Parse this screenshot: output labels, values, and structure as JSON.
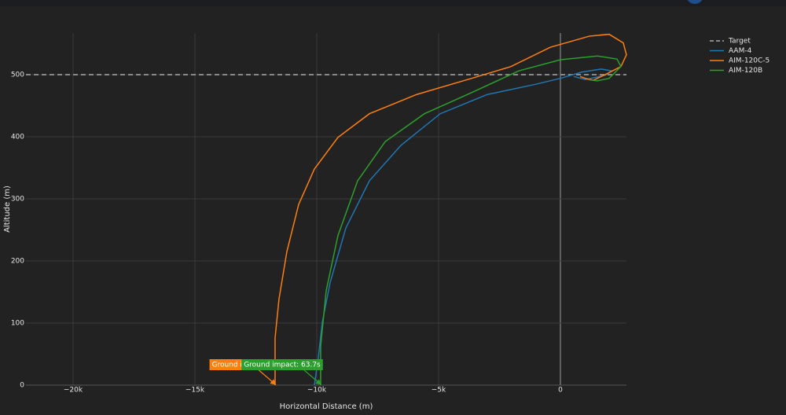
{
  "chart_data": {
    "type": "line",
    "xlabel": "Horizontal Distance (m)",
    "ylabel": "Altitude (m)",
    "xlim": [
      -21935,
      2710
    ],
    "ylim": [
      0,
      567
    ],
    "xticks": [
      {
        "value": -20000,
        "label": "−20k"
      },
      {
        "value": -15000,
        "label": "−15k"
      },
      {
        "value": -10000,
        "label": "−10k"
      },
      {
        "value": -5000,
        "label": "−5k"
      },
      0
    ],
    "yticks": [
      0,
      100,
      200,
      300,
      400,
      500
    ],
    "grid": true,
    "legend": "top-right",
    "series": [
      {
        "name": "Target",
        "color": "#aaaaaa",
        "dash": true,
        "x": [
          -21935,
          2710
        ],
        "values": [
          500,
          500
        ]
      },
      {
        "name": "AAM-4",
        "color": "#1f77b4",
        "x": [
          -10097,
          -9935,
          -9774,
          -9452,
          -8806,
          -7839,
          -6548,
          -4935,
          -3000,
          -1065,
          0,
          871,
          1677,
          2097,
          1839,
          1032,
          548
        ],
        "values": [
          0,
          44,
          101,
          165,
          253,
          329,
          386,
          437,
          468,
          484,
          494,
          504,
          509,
          506,
          499,
          492,
          497
        ]
      },
      {
        "name": "AIM-120C-5",
        "color": "#ff7f0e",
        "x": [
          -11710,
          -11710,
          -11548,
          -11226,
          -10742,
          -10097,
          -9129,
          -7839,
          -5903,
          -3645,
          -2032,
          -419,
          1194,
          2000,
          2581,
          2710,
          2484,
          1839,
          1355,
          1032,
          806
        ],
        "values": [
          0,
          76,
          139,
          215,
          291,
          348,
          399,
          437,
          468,
          494,
          513,
          544,
          562,
          565,
          551,
          532,
          513,
          500,
          491,
          494,
          497
        ]
      },
      {
        "name": "AIM-120B",
        "color": "#2ca02c",
        "x": [
          -9839,
          -9839,
          -9613,
          -9129,
          -8323,
          -7194,
          -5581,
          -3645,
          -1710,
          0,
          1516,
          2323,
          2484,
          2000,
          1516,
          1129
        ],
        "values": [
          0,
          63,
          152,
          241,
          329,
          392,
          437,
          471,
          506,
          524,
          530,
          525,
          513,
          494,
          490,
          492
        ]
      }
    ],
    "annotations": [
      {
        "text": "Ground impac",
        "x": -11700,
        "y": 0,
        "color": "#ff7f0e"
      },
      {
        "text": "Ground impact: 63.7s",
        "x": -9839,
        "y": 0,
        "color": "#2ca02c"
      }
    ]
  }
}
